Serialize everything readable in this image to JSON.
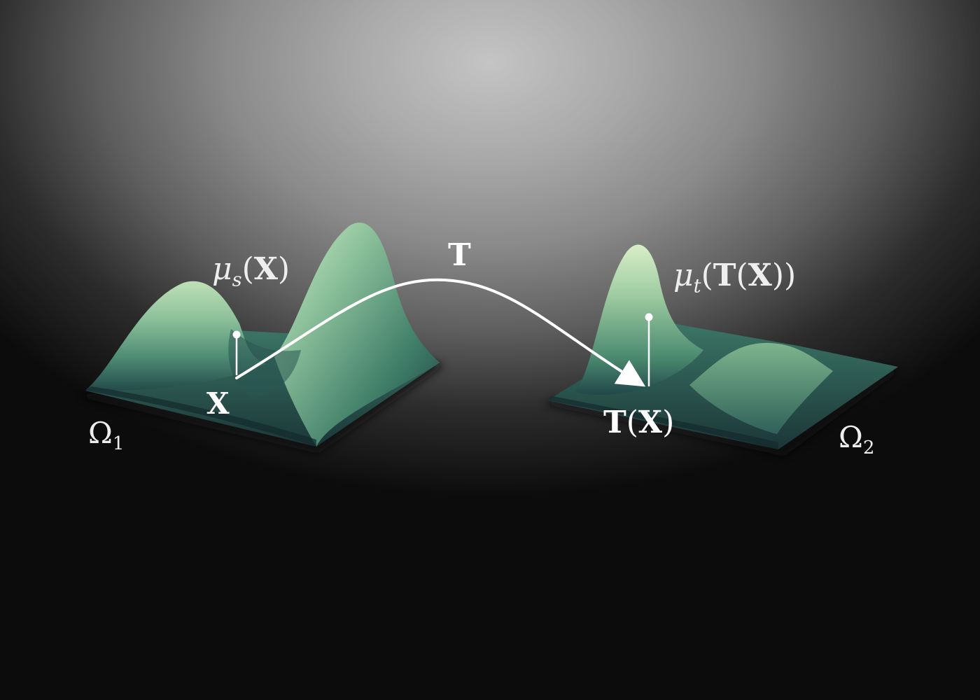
{
  "diagram": {
    "source": {
      "domain_symbol": "Ω",
      "domain_index": "1",
      "point_label": "X",
      "density_name": "μ",
      "density_subscript": "s",
      "density_arg": "X"
    },
    "target": {
      "domain_symbol": "Ω",
      "domain_index": "2",
      "mapped_point_func": "T",
      "mapped_point_arg": "X",
      "density_name": "μ",
      "density_subscript": "t",
      "density_arg_func": "T",
      "density_arg": "X"
    },
    "map_label": "T"
  },
  "colors": {
    "surface_light": "#b9dcb0",
    "surface_mid": "#4f8f72",
    "surface_dark": "#1c3a3e",
    "arrow": "#ffffff"
  }
}
